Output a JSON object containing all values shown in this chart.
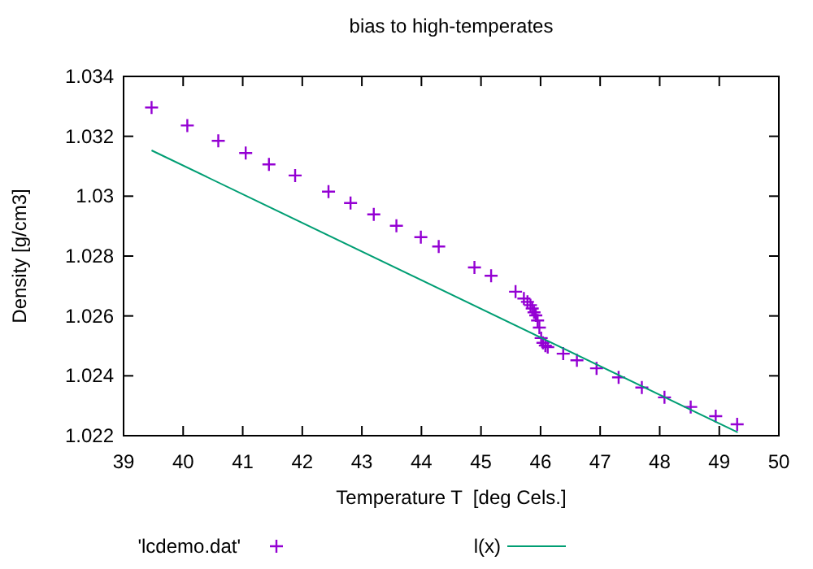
{
  "chart_data": {
    "type": "scatter",
    "title": "bias to high-temperates",
    "xlabel": "Temperature T  [deg Cels.]",
    "ylabel": "Density [g/cm3]",
    "xlim": [
      39,
      50
    ],
    "xticks": [
      39,
      40,
      41,
      42,
      43,
      44,
      45,
      46,
      47,
      48,
      49,
      50
    ],
    "ylim": [
      1.022,
      1.034
    ],
    "yticks": [
      1.022,
      1.024,
      1.026,
      1.028,
      1.03,
      1.032,
      1.034
    ],
    "grid": false,
    "legend": "bottom",
    "series": [
      {
        "name": "'lcdemo.dat'",
        "marker": "cross",
        "color": "#9400d3",
        "x": [
          39.47,
          40.07,
          40.59,
          41.05,
          41.44,
          41.88,
          42.44,
          42.81,
          43.2,
          43.58,
          43.99,
          44.29,
          44.89,
          45.17,
          45.58,
          45.72,
          45.78,
          45.83,
          45.86,
          45.89,
          45.92,
          45.95,
          45.98,
          46.01,
          46.04,
          46.08,
          46.12,
          46.38,
          46.61,
          46.94,
          47.31,
          47.7,
          48.08,
          48.52,
          48.94,
          49.3
        ],
        "values": [
          1.03296,
          1.03236,
          1.03185,
          1.03144,
          1.03106,
          1.03069,
          1.03015,
          1.02977,
          1.02939,
          1.02901,
          1.02863,
          1.02832,
          1.02762,
          1.02734,
          1.02681,
          1.02658,
          1.02647,
          1.02636,
          1.02625,
          1.02612,
          1.02602,
          1.02585,
          1.02561,
          1.02526,
          1.0251,
          1.02501,
          1.02496,
          1.02474,
          1.02452,
          1.02425,
          1.02395,
          1.02361,
          1.02328,
          1.02296,
          1.02265,
          1.02238
        ]
      },
      {
        "name": "l(x)",
        "type": "line",
        "color": "#009e73",
        "line_style": "solid",
        "x": [
          39.47,
          49.31
        ],
        "values": [
          1.03153,
          1.02211
        ]
      }
    ]
  }
}
